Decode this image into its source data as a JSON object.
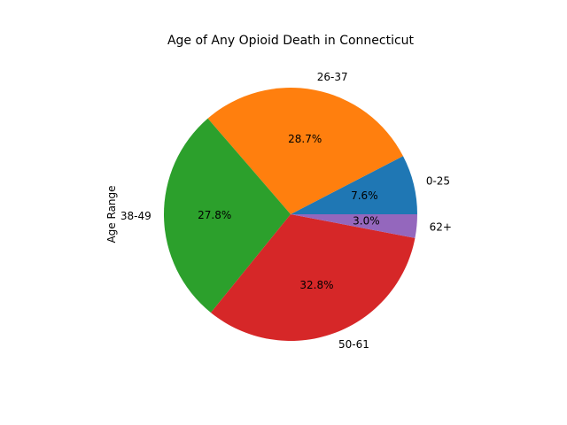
{
  "chart_data": {
    "type": "pie",
    "title": "Age of Any Opioid Death in Connecticut",
    "ylabel": "Age Range",
    "categories": [
      "0-25",
      "26-37",
      "38-49",
      "50-61",
      "62+"
    ],
    "values": [
      7.6,
      28.7,
      27.8,
      32.8,
      3.0
    ],
    "percent_labels": [
      "7.6%",
      "28.7%",
      "27.8%",
      "32.8%",
      "3.0%"
    ],
    "colors": [
      "#1f77b4",
      "#ff7f0e",
      "#2ca02c",
      "#d62728",
      "#9467bd"
    ],
    "start_angle_deg": 0,
    "direction": "counterclockwise",
    "legend": "none"
  }
}
